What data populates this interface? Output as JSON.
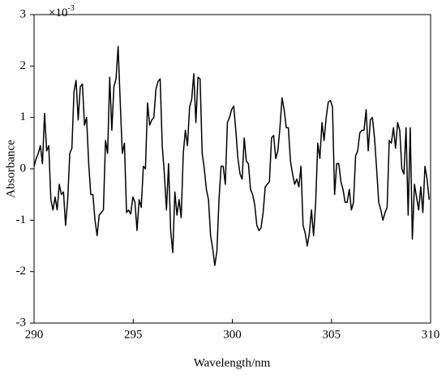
{
  "chart_data": {
    "type": "line",
    "x_label": "Wavelength/nm",
    "y_label": "Absorbance",
    "y_multiplier": {
      "base": "×10",
      "exponent": "-3"
    },
    "xlim": [
      290,
      310
    ],
    "xticks": [
      290,
      295,
      300,
      305,
      310
    ],
    "ylim": [
      -3,
      3
    ],
    "yticks": [
      -3,
      -2,
      -1,
      0,
      1,
      2,
      3
    ],
    "series": [
      {
        "color": "#000000",
        "x": [
          290,
          290.106,
          290.212,
          290.318,
          290.424,
          290.53,
          290.636,
          290.742,
          290.848,
          290.954,
          291.06,
          291.166,
          291.272,
          291.378,
          291.484,
          291.59,
          291.696,
          291.802,
          291.908,
          292.014,
          292.12,
          292.226,
          292.332,
          292.438,
          292.544,
          292.65,
          292.756,
          292.862,
          292.968,
          293.074,
          293.18,
          293.286,
          293.392,
          293.498,
          293.604,
          293.71,
          293.816,
          293.922,
          294.028,
          294.134,
          294.24,
          294.346,
          294.452,
          294.558,
          294.664,
          294.77,
          294.876,
          294.982,
          295.088,
          295.194,
          295.3,
          295.406,
          295.512,
          295.618,
          295.724,
          295.83,
          295.936,
          296.042,
          296.148,
          296.254,
          296.36,
          296.466,
          296.572,
          296.678,
          296.784,
          296.89,
          296.996,
          297.102,
          297.208,
          297.314,
          297.42,
          297.526,
          297.632,
          297.738,
          297.844,
          297.95,
          298.056,
          298.162,
          298.268,
          298.374,
          298.48,
          298.586,
          298.692,
          298.798,
          298.904,
          299.01,
          299.116,
          299.222,
          299.328,
          299.434,
          299.54,
          299.646,
          299.752,
          299.858,
          299.964,
          300.07,
          300.176,
          300.282,
          300.388,
          300.494,
          300.6,
          300.706,
          300.812,
          300.918,
          301.024,
          301.13,
          301.236,
          301.342,
          301.448,
          301.554,
          301.66,
          301.766,
          301.872,
          301.978,
          302.084,
          302.19,
          302.296,
          302.402,
          302.508,
          302.614,
          302.72,
          302.826,
          302.932,
          303.038,
          303.144,
          303.25,
          303.356,
          303.462,
          303.568,
          303.674,
          303.78,
          303.886,
          303.992,
          304.098,
          304.204,
          304.31,
          304.416,
          304.522,
          304.628,
          304.734,
          304.84,
          304.946,
          305.052,
          305.158,
          305.264,
          305.37,
          305.476,
          305.582,
          305.688,
          305.794,
          305.9,
          306.006,
          306.112,
          306.218,
          306.324,
          306.43,
          306.536,
          306.642,
          306.748,
          306.854,
          306.96,
          307.066,
          307.172,
          307.278,
          307.384,
          307.49,
          307.596,
          307.702,
          307.808,
          307.914,
          308.02,
          308.126,
          308.232,
          308.338,
          308.444,
          308.55,
          308.656,
          308.762,
          308.868,
          308.974,
          309.08,
          309.186,
          309.292,
          309.398,
          309.504,
          309.61,
          309.716,
          309.822,
          309.928
        ],
        "values": [
          0.05,
          0.2,
          0.3,
          0.45,
          0.1,
          1.08,
          0.35,
          0.45,
          -0.6,
          -0.8,
          -0.55,
          -0.8,
          -0.3,
          -0.5,
          -0.45,
          -1.1,
          -0.6,
          0.3,
          0.4,
          1.5,
          1.72,
          0.95,
          1.6,
          1.65,
          0.85,
          1.0,
          0.1,
          -0.5,
          -0.5,
          -1.0,
          -1.3,
          -0.9,
          -0.85,
          -0.8,
          0.55,
          0.3,
          1.78,
          0.75,
          1.6,
          1.75,
          2.38,
          1.3,
          0.3,
          0.5,
          -0.85,
          -0.8,
          -0.88,
          -0.55,
          -0.65,
          -1.2,
          -0.6,
          -0.75,
          0.05,
          0.0,
          1.28,
          0.85,
          0.95,
          1.0,
          1.55,
          1.7,
          1.75,
          0.45,
          -0.1,
          -0.8,
          0.1,
          -1.2,
          -1.63,
          -0.45,
          -0.9,
          -0.6,
          -0.95,
          0.3,
          0.75,
          0.45,
          1.2,
          1.35,
          1.85,
          0.9,
          1.78,
          1.75,
          0.3,
          0.0,
          -0.4,
          -0.6,
          -1.3,
          -1.55,
          -1.88,
          -1.6,
          -0.6,
          0.05,
          0.05,
          -0.3,
          0.9,
          1.0,
          1.15,
          1.22,
          0.75,
          0.2,
          -0.1,
          -0.2,
          0.6,
          0.15,
          0.1,
          -0.4,
          -0.5,
          -0.7,
          -1.1,
          -1.2,
          -1.15,
          -0.85,
          -0.35,
          -0.3,
          -0.25,
          0.6,
          0.65,
          0.2,
          0.35,
          0.8,
          1.38,
          1.15,
          0.8,
          0.8,
          0.15,
          -0.1,
          -0.3,
          -0.2,
          -0.35,
          0.05,
          -1.1,
          -1.25,
          -1.5,
          -1.25,
          -0.8,
          -1.3,
          -0.65,
          0.5,
          0.2,
          0.9,
          0.55,
          1.0,
          1.3,
          1.33,
          1.2,
          -0.5,
          0.1,
          0.1,
          -0.25,
          -0.4,
          -0.65,
          -0.65,
          -0.4,
          -0.8,
          -0.65,
          0.25,
          0.35,
          0.7,
          0.75,
          0.75,
          1.15,
          0.35,
          0.95,
          1.0,
          0.6,
          0.0,
          -0.65,
          -0.8,
          -1.0,
          -0.85,
          -0.75,
          0.55,
          0.5,
          0.8,
          0.4,
          0.9,
          0.75,
          0.0,
          -0.1,
          0.8,
          -0.9,
          0.8,
          -1.37,
          -0.3,
          -0.55,
          -0.8,
          -0.35,
          -0.85,
          0.05,
          -0.2,
          -0.6
        ]
      }
    ]
  }
}
